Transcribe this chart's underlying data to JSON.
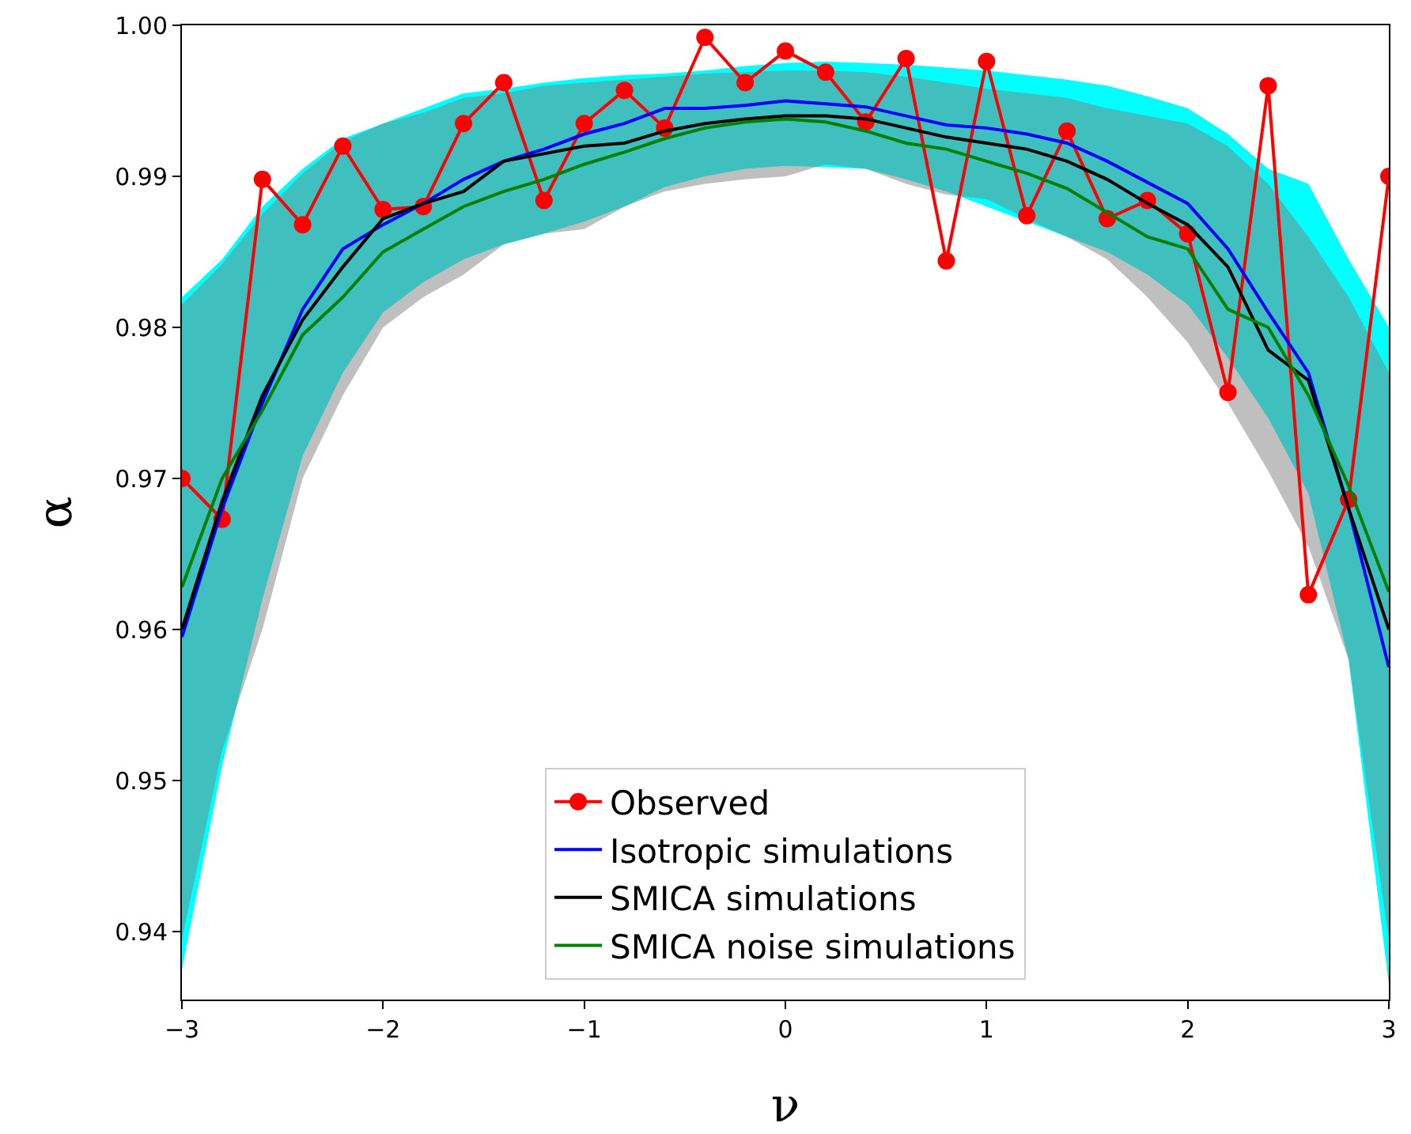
{
  "chart_data": {
    "type": "line",
    "xlabel": "ν",
    "ylabel": "α",
    "x": [
      -3,
      -2.8,
      -2.6,
      -2.4,
      -2.2,
      -2,
      -1.8,
      -1.6,
      -1.4,
      -1.2,
      -1,
      -0.8,
      -0.6,
      -0.4,
      -0.2,
      0,
      0.2,
      0.4,
      0.6,
      0.8,
      1,
      1.2,
      1.4,
      1.6,
      1.8,
      2,
      2.2,
      2.4,
      2.6,
      2.8,
      3
    ],
    "series": [
      {
        "name": "Observed",
        "color": "#ff0000",
        "marker": "circle",
        "values": [
          0.97,
          0.9673,
          0.9898,
          0.9868,
          0.992,
          0.9878,
          0.988,
          0.9935,
          0.9962,
          0.9884,
          0.9935,
          0.9957,
          0.9932,
          0.9992,
          0.9962,
          0.9983,
          0.9969,
          0.9936,
          0.9978,
          0.9844,
          0.9976,
          0.9874,
          0.993,
          0.9872,
          0.9884,
          0.9862,
          0.9757,
          0.996,
          0.9623,
          0.9686,
          0.99
        ]
      },
      {
        "name": "Isotropic simulations",
        "color": "#0000ff",
        "marker": "none",
        "values": [
          0.9595,
          0.968,
          0.975,
          0.9812,
          0.9852,
          0.9868,
          0.9882,
          0.9898,
          0.991,
          0.9918,
          0.9928,
          0.9935,
          0.9945,
          0.9945,
          0.9947,
          0.995,
          0.9948,
          0.9946,
          0.994,
          0.9934,
          0.9932,
          0.9928,
          0.9922,
          0.991,
          0.9896,
          0.9882,
          0.9852,
          0.981,
          0.977,
          0.968,
          0.9575
        ],
        "lower": [
          0.9375,
          0.951,
          0.962,
          0.9715,
          0.977,
          0.981,
          0.983,
          0.9845,
          0.9855,
          0.9862,
          0.987,
          0.988,
          0.9893,
          0.99,
          0.9905,
          0.9907,
          0.9906,
          0.9905,
          0.9898,
          0.989,
          0.988,
          0.987,
          0.986,
          0.985,
          0.9835,
          0.9815,
          0.978,
          0.974,
          0.969,
          0.958,
          0.9365
        ],
        "upper": [
          0.982,
          0.9845,
          0.988,
          0.9905,
          0.9925,
          0.9935,
          0.9945,
          0.9955,
          0.9958,
          0.9962,
          0.9965,
          0.9967,
          0.9968,
          0.997,
          0.9973,
          0.9975,
          0.9976,
          0.9975,
          0.9974,
          0.9972,
          0.997,
          0.9967,
          0.9964,
          0.996,
          0.9953,
          0.9945,
          0.9928,
          0.9905,
          0.9895,
          0.9845,
          0.98
        ]
      },
      {
        "name": "SMICA simulations",
        "color": "#000000",
        "marker": "none",
        "values": [
          0.96,
          0.9685,
          0.9755,
          0.9805,
          0.984,
          0.9872,
          0.9882,
          0.989,
          0.991,
          0.9915,
          0.992,
          0.9922,
          0.993,
          0.9935,
          0.9938,
          0.994,
          0.994,
          0.9938,
          0.9932,
          0.9926,
          0.9922,
          0.9918,
          0.991,
          0.9898,
          0.9882,
          0.9868,
          0.984,
          0.9785,
          0.9765,
          0.968,
          0.96
        ],
        "lower": [
          0.9395,
          0.952,
          0.96,
          0.97,
          0.9755,
          0.98,
          0.982,
          0.9835,
          0.9855,
          0.9862,
          0.9865,
          0.988,
          0.989,
          0.9895,
          0.9898,
          0.99,
          0.9908,
          0.9905,
          0.9895,
          0.9888,
          0.9885,
          0.9872,
          0.986,
          0.9845,
          0.982,
          0.979,
          0.975,
          0.9705,
          0.9655,
          0.958,
          0.9395
        ],
        "upper": [
          0.9815,
          0.9842,
          0.9875,
          0.9902,
          0.9923,
          0.9935,
          0.9942,
          0.9952,
          0.9955,
          0.996,
          0.9962,
          0.9964,
          0.9966,
          0.9968,
          0.9969,
          0.997,
          0.997,
          0.9969,
          0.9966,
          0.9962,
          0.9958,
          0.9955,
          0.9952,
          0.9945,
          0.994,
          0.9935,
          0.992,
          0.9895,
          0.986,
          0.982,
          0.977
        ]
      },
      {
        "name": "SMICA noise simulations",
        "color": "#008000",
        "marker": "none",
        "values": [
          0.9628,
          0.97,
          0.9745,
          0.9795,
          0.982,
          0.985,
          0.9865,
          0.988,
          0.989,
          0.9898,
          0.9908,
          0.9916,
          0.9925,
          0.9932,
          0.9936,
          0.9938,
          0.9936,
          0.993,
          0.9922,
          0.9918,
          0.991,
          0.9902,
          0.9892,
          0.9876,
          0.986,
          0.9852,
          0.9812,
          0.98,
          0.9755,
          0.9695,
          0.9625
        ]
      }
    ],
    "xlim": [
      -3,
      3
    ],
    "ylim": [
      0.9355,
      1.0
    ],
    "xticks": [
      {
        "value": -3,
        "label": "−3"
      },
      {
        "value": -2,
        "label": "−2"
      },
      {
        "value": -1,
        "label": "−1"
      },
      0,
      1,
      2,
      3
    ],
    "yticks": [
      0.94,
      0.95,
      0.96,
      0.97,
      0.98,
      0.99,
      {
        "value": 1,
        "label": "1.00"
      }
    ],
    "grid": false,
    "legend": "bottom",
    "line_style": "solid"
  }
}
